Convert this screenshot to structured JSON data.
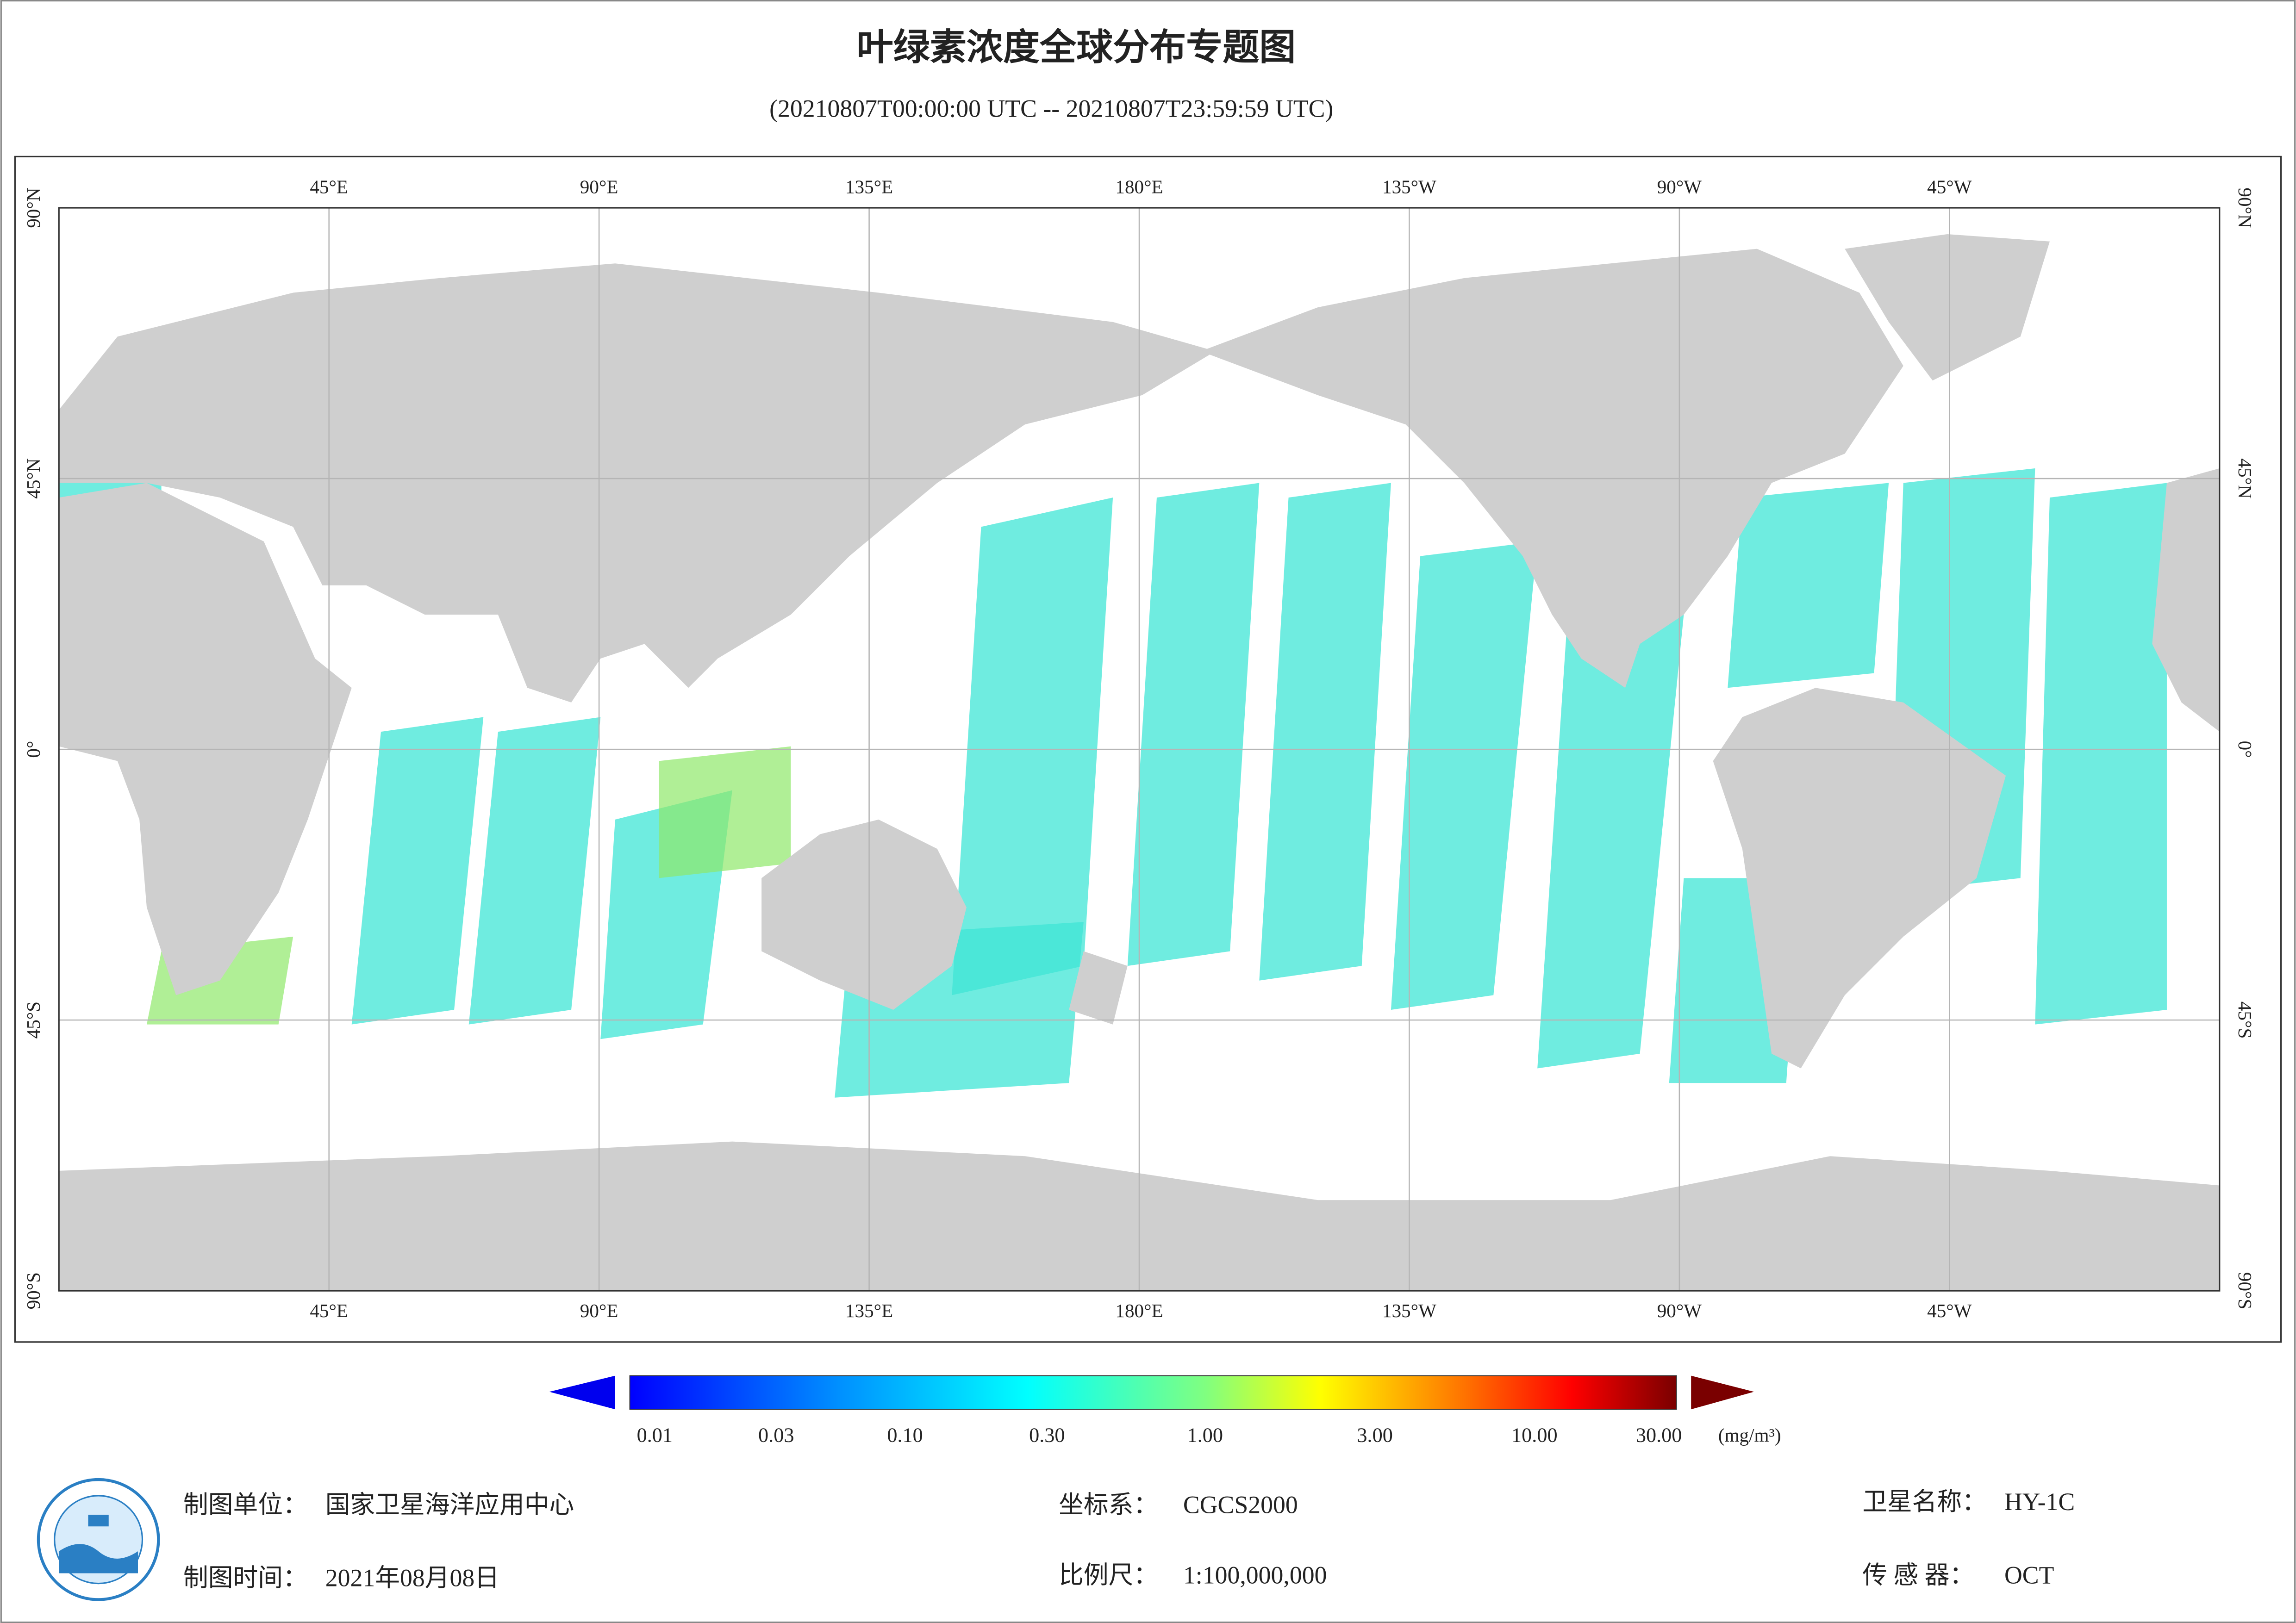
{
  "header": {
    "title": "叶绿素浓度全球分布专题图",
    "subtitle": "(20210807T00:00:00 UTC -- 20210807T23:59:59 UTC)"
  },
  "map": {
    "lon_labels": [
      "45°E",
      "90°E",
      "135°E",
      "180°E",
      "135°W",
      "90°W",
      "45°W"
    ],
    "lat_labels": [
      "90°N",
      "45°N",
      "0°",
      "45°S",
      "90°S"
    ]
  },
  "colorbar": {
    "labels": [
      "0.01",
      "0.03",
      "0.10",
      "0.30",
      "1.00",
      "3.00",
      "10.00",
      "30.00"
    ],
    "unit": "(mg/m³)"
  },
  "footer": {
    "items": [
      {
        "label": "制图单位：",
        "value": "国家卫星海洋应用中心"
      },
      {
        "label": "制图时间：",
        "value": "2021年08月08日"
      },
      {
        "label": "坐标系：",
        "value": "CGCS2000"
      },
      {
        "label": "比例尺：",
        "value": "1:100,000,000"
      },
      {
        "label": "卫星名称：",
        "value": "HY-1C"
      },
      {
        "label": "传 感 器：",
        "value": "OCT"
      }
    ]
  }
}
